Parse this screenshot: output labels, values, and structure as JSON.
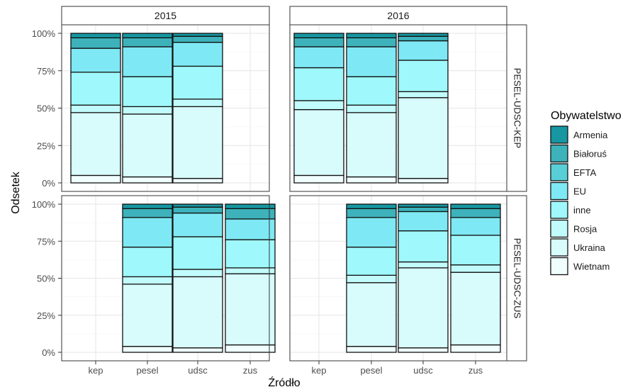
{
  "chart_data": {
    "type": "bar",
    "stacked": "percent",
    "xlabel": "Źródło",
    "ylabel": "Odsetek",
    "ylim": [
      0,
      1
    ],
    "yticks": [
      "0%",
      "25%",
      "50%",
      "75%",
      "100%"
    ],
    "categories": [
      "kep",
      "pesel",
      "udsc",
      "zus"
    ],
    "facet_columns": [
      "2015",
      "2016"
    ],
    "facet_rows": [
      "PESEL-UDSC-KEP",
      "PESEL-UDSC-ZUS"
    ],
    "legend": {
      "title": "Obywatelstwo",
      "position": "right"
    },
    "series": [
      {
        "name": "Wietnam",
        "color": "#f0fefe"
      },
      {
        "name": "Ukraina",
        "color": "#d8fcfc"
      },
      {
        "name": "Rosja",
        "color": "#c2fbfb"
      },
      {
        "name": "inne",
        "color": "#9ff8fb"
      },
      {
        "name": "EU",
        "color": "#7ee9f4"
      },
      {
        "name": "EFTA",
        "color": "#58cfd6"
      },
      {
        "name": "Białoruś",
        "color": "#3db2bb"
      },
      {
        "name": "Armenia",
        "color": "#1697a1"
      }
    ],
    "panels": [
      {
        "column": "2015",
        "row": "PESEL-UDSC-KEP",
        "bars": {
          "kep": [
            0.05,
            0.42,
            0.05,
            0.22,
            0.16,
            0.0,
            0.07,
            0.03
          ],
          "pesel": [
            0.04,
            0.42,
            0.05,
            0.2,
            0.2,
            0.0,
            0.06,
            0.03
          ],
          "udsc": [
            0.03,
            0.48,
            0.05,
            0.22,
            0.16,
            0.0,
            0.04,
            0.02
          ]
        }
      },
      {
        "column": "2016",
        "row": "PESEL-UDSC-KEP",
        "bars": {
          "kep": [
            0.05,
            0.44,
            0.06,
            0.22,
            0.14,
            0.0,
            0.06,
            0.03
          ],
          "pesel": [
            0.04,
            0.43,
            0.05,
            0.19,
            0.2,
            0.0,
            0.06,
            0.03
          ],
          "udsc": [
            0.03,
            0.54,
            0.04,
            0.21,
            0.13,
            0.0,
            0.03,
            0.02
          ]
        }
      },
      {
        "column": "2015",
        "row": "PESEL-UDSC-ZUS",
        "bars": {
          "pesel": [
            0.04,
            0.42,
            0.05,
            0.2,
            0.2,
            0.0,
            0.06,
            0.03
          ],
          "udsc": [
            0.03,
            0.48,
            0.05,
            0.22,
            0.16,
            0.0,
            0.04,
            0.02
          ],
          "zus": [
            0.05,
            0.48,
            0.04,
            0.19,
            0.14,
            0.0,
            0.07,
            0.03
          ]
        }
      },
      {
        "column": "2016",
        "row": "PESEL-UDSC-ZUS",
        "bars": {
          "pesel": [
            0.04,
            0.43,
            0.05,
            0.19,
            0.2,
            0.0,
            0.06,
            0.03
          ],
          "udsc": [
            0.03,
            0.54,
            0.04,
            0.21,
            0.13,
            0.0,
            0.03,
            0.02
          ],
          "zus": [
            0.05,
            0.49,
            0.05,
            0.2,
            0.12,
            0.0,
            0.06,
            0.03
          ]
        }
      }
    ]
  }
}
